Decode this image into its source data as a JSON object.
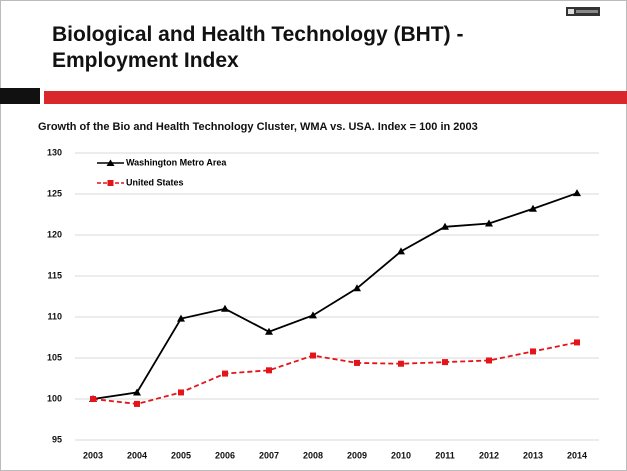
{
  "chart_data": {
    "type": "line",
    "title": "Biological and Health Technology (BHT) - Employment Index",
    "subtitle": "Growth of the Bio and Health Technology Cluster, WMA vs. USA. Index = 100 in 2003",
    "categories": [
      "2003",
      "2004",
      "2005",
      "2006",
      "2007",
      "2008",
      "2009",
      "2010",
      "2011",
      "2012",
      "2013",
      "2014"
    ],
    "series": [
      {
        "name": "Washington Metro Area",
        "color": "#000000",
        "values": [
          100,
          100.8,
          109.8,
          111.0,
          108.2,
          110.2,
          113.5,
          118.0,
          121.0,
          121.4,
          123.2,
          125.1
        ]
      },
      {
        "name": "United States",
        "color": "#e3151a",
        "values": [
          100,
          99.4,
          100.8,
          103.1,
          103.5,
          105.3,
          104.4,
          104.3,
          104.5,
          104.7,
          105.8,
          106.9
        ]
      }
    ],
    "ylim": [
      95,
      130
    ],
    "yticks": [
      95,
      100,
      105,
      110,
      115,
      120,
      125,
      130
    ],
    "grid": true
  }
}
